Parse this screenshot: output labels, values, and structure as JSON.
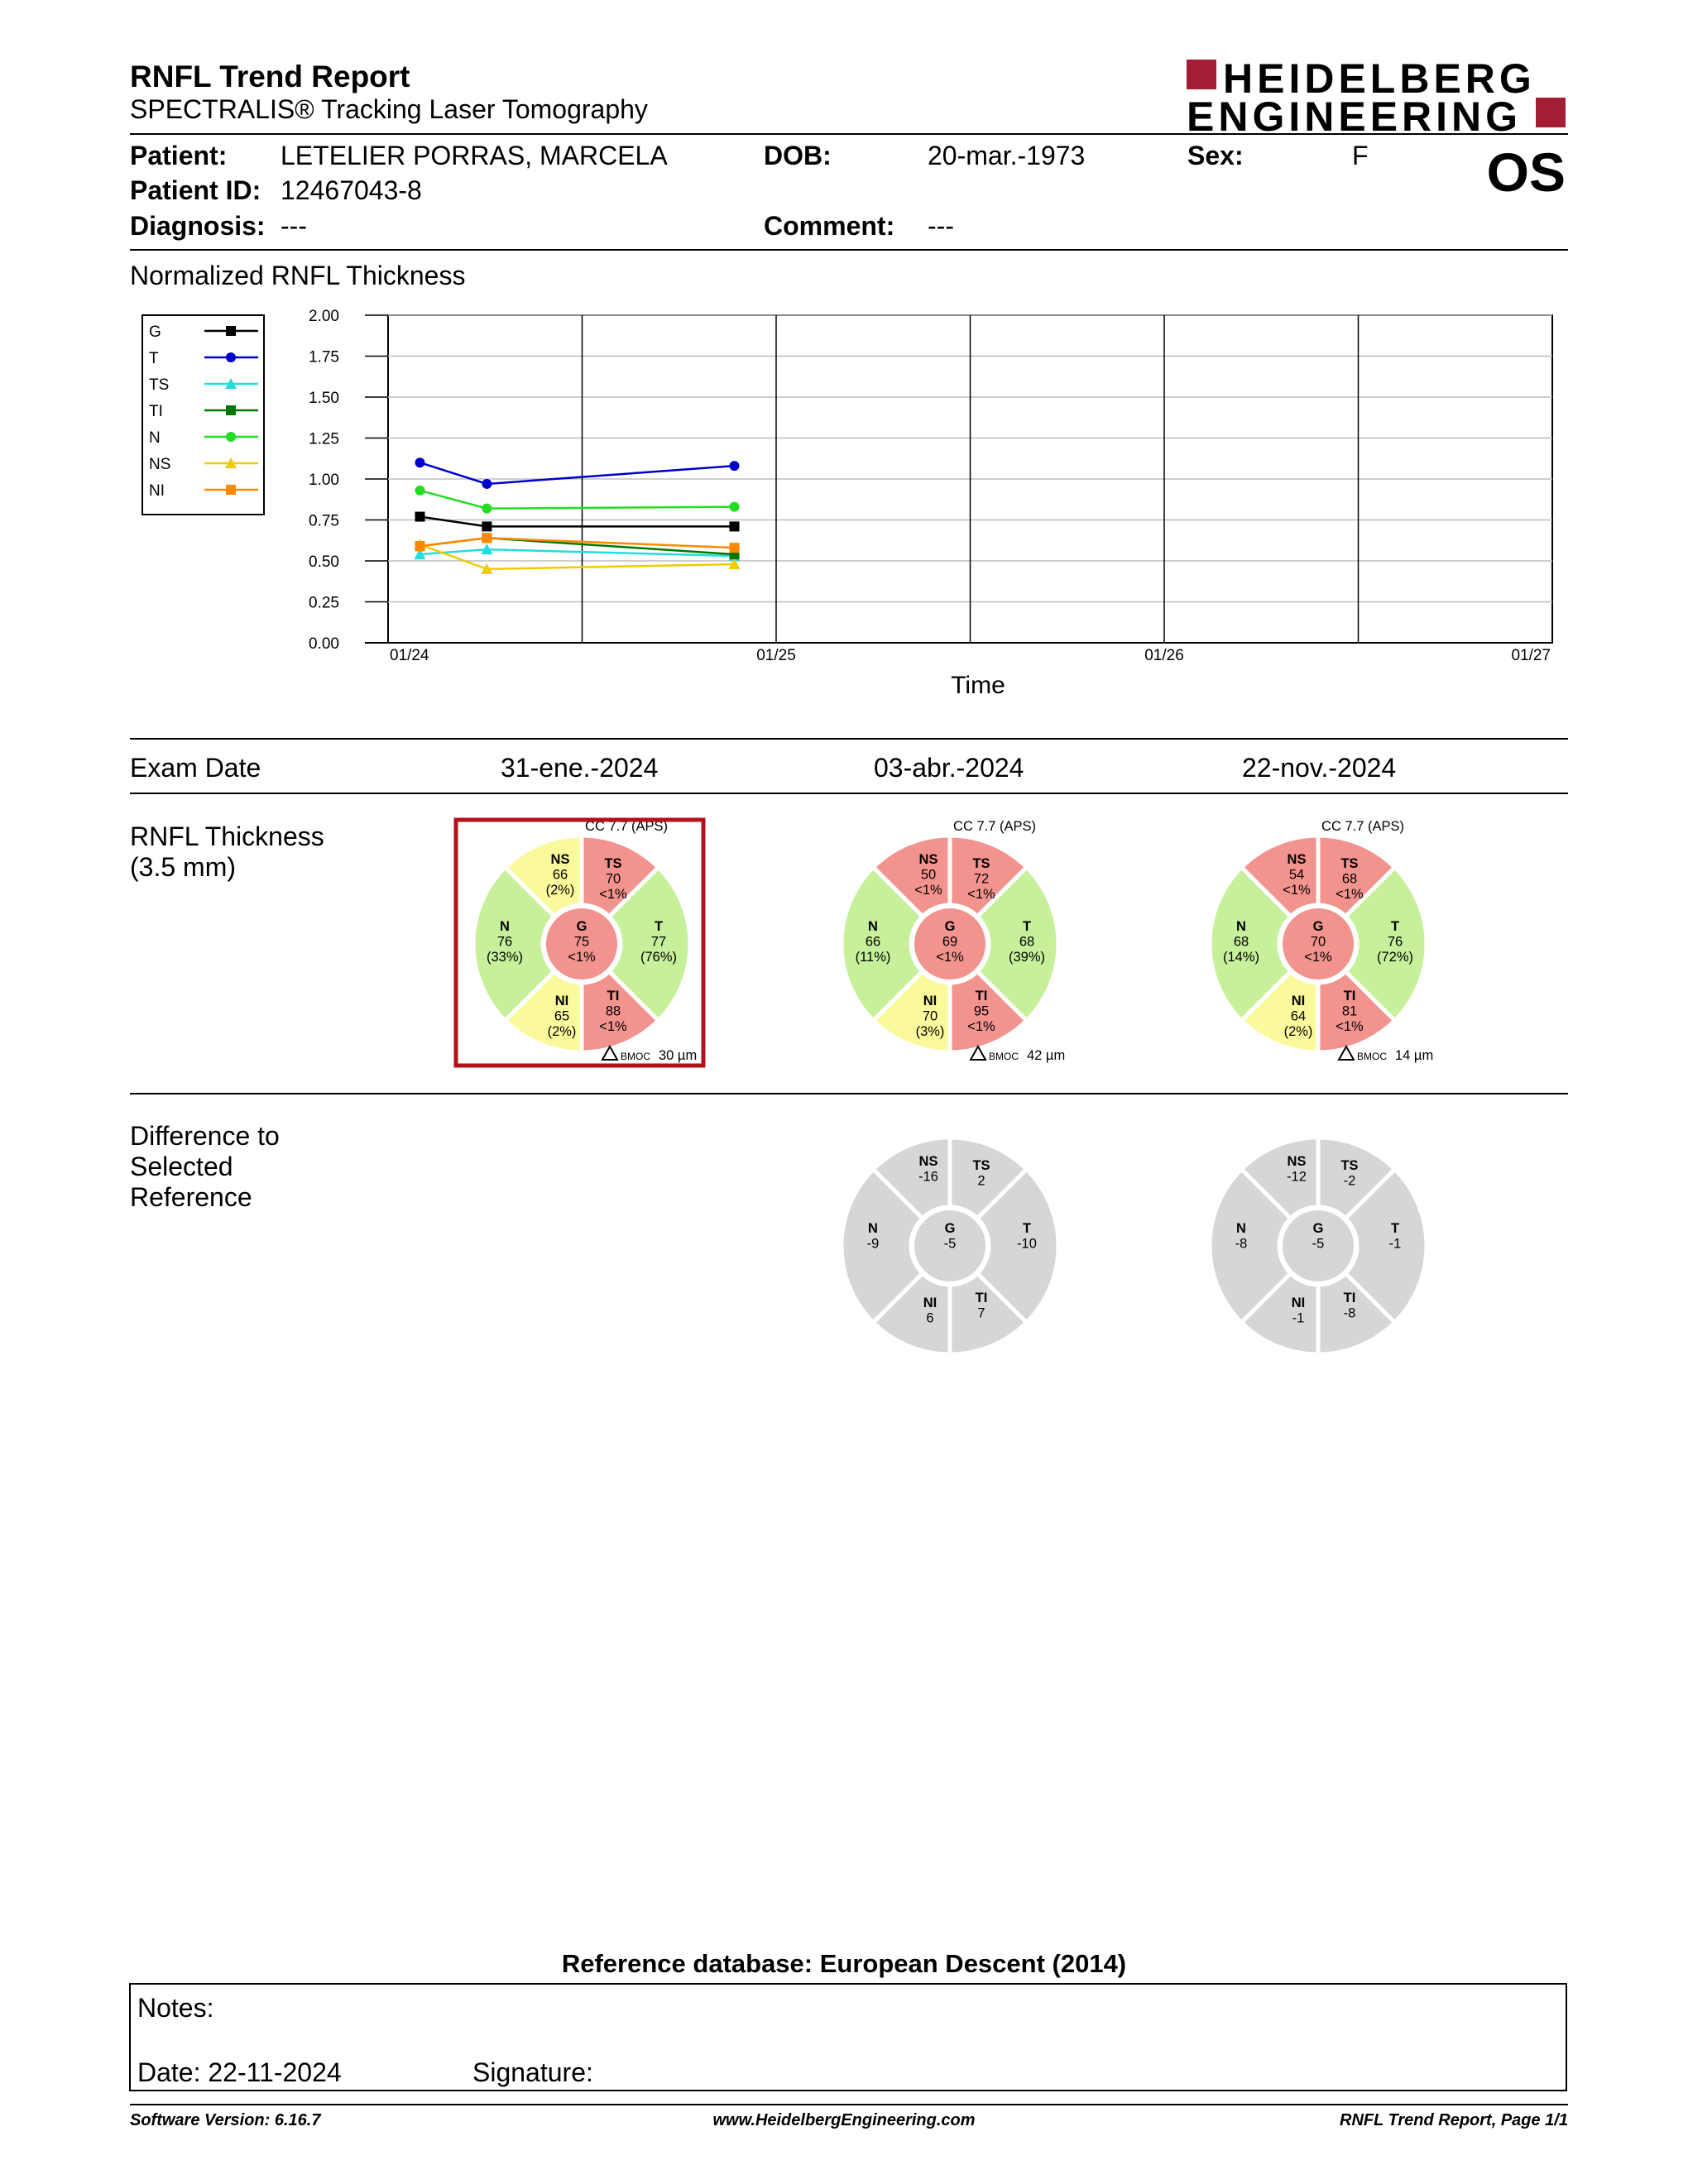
{
  "header": {
    "title": "RNFL Trend Report",
    "subtitle": "SPECTRALIS® Tracking Laser Tomography",
    "logo_line1": "HEIDELBERG",
    "logo_line2": "ENGINEERING",
    "brand_color": "#a31d35"
  },
  "patient": {
    "patient_label": "Patient:",
    "patient_value": "LETELIER PORRAS, MARCELA",
    "id_label": "Patient ID:",
    "id_value": "12467043-8",
    "diagnosis_label": "Diagnosis:",
    "diagnosis_value": "---",
    "dob_label": "DOB:",
    "dob_value": "20-mar.-1973",
    "comment_label": "Comment:",
    "comment_value": "---",
    "sex_label": "Sex:",
    "sex_value": "F",
    "eye": "OS"
  },
  "trend": {
    "section_title": "Normalized RNFL Thickness"
  },
  "chart_data": {
    "type": "line",
    "title": "",
    "xlabel": "Time",
    "ylabel": "",
    "x_tick_labels": [
      "01/24",
      "01/25",
      "01/26",
      "01/27"
    ],
    "y_tick_labels": [
      "2.00",
      "1.75",
      "1.50",
      "1.25",
      "1.00",
      "0.75",
      "0.50",
      "0.25",
      "0.00"
    ],
    "ylim": [
      0,
      2
    ],
    "xlim": [
      "2024-01-01",
      "2027-01-01"
    ],
    "grid": true,
    "legend": "left",
    "x": [
      "2024-01-31",
      "2024-04-03",
      "2024-11-22"
    ],
    "series": [
      {
        "name": "G",
        "color": "#000000",
        "marker": "square",
        "values": [
          0.77,
          0.71,
          0.71
        ]
      },
      {
        "name": "T",
        "color": "#0000cc",
        "marker": "circle",
        "values": [
          1.1,
          0.97,
          1.08
        ]
      },
      {
        "name": "TS",
        "color": "#22dddd",
        "marker": "triangle",
        "values": [
          0.54,
          0.57,
          0.53
        ]
      },
      {
        "name": "TI",
        "color": "#007700",
        "marker": "square",
        "values": [
          0.59,
          0.64,
          0.54
        ]
      },
      {
        "name": "N",
        "color": "#22dd22",
        "marker": "circle",
        "values": [
          0.93,
          0.82,
          0.83
        ]
      },
      {
        "name": "NS",
        "color": "#eecc00",
        "marker": "triangle",
        "values": [
          0.6,
          0.45,
          0.48
        ]
      },
      {
        "name": "NI",
        "color": "#ff8800",
        "marker": "square",
        "values": [
          0.59,
          0.64,
          0.58
        ]
      }
    ]
  },
  "exams": {
    "date_label": "Exam Date",
    "thickness_label_1": "RNFL Thickness",
    "thickness_label_2": "(3.5 mm)",
    "diff_label_1": "Difference to",
    "diff_label_2": "Selected",
    "diff_label_3": "Reference",
    "colors": {
      "green": "#c6f09a",
      "yellow": "#fafa9c",
      "red": "#f2938e",
      "grey": "#d6d6d6",
      "selected": "#b3121b"
    },
    "items": [
      {
        "date": "31-ene.-2024",
        "cc": "CC 7.7 (APS)",
        "bmoc_label": "BMOC",
        "bmoc_value": "30 µm",
        "sectors": {
          "NS": {
            "label": "NS",
            "value": "66",
            "pct": "(2%)",
            "status": "yellow"
          },
          "TS": {
            "label": "TS",
            "value": "70",
            "pct": "<1%",
            "status": "red"
          },
          "N": {
            "label": "N",
            "value": "76",
            "pct": "(33%)",
            "status": "green"
          },
          "G": {
            "label": "G",
            "value": "75",
            "pct": "<1%",
            "status": "red"
          },
          "T": {
            "label": "T",
            "value": "77",
            "pct": "(76%)",
            "status": "green"
          },
          "NI": {
            "label": "NI",
            "value": "65",
            "pct": "(2%)",
            "status": "yellow"
          },
          "TI": {
            "label": "TI",
            "value": "88",
            "pct": "<1%",
            "status": "red"
          }
        }
      },
      {
        "date": "03-abr.-2024",
        "cc": "CC 7.7 (APS)",
        "bmoc_label": "BMOC",
        "bmoc_value": "42 µm",
        "sectors": {
          "NS": {
            "label": "NS",
            "value": "50",
            "pct": "<1%",
            "status": "red"
          },
          "TS": {
            "label": "TS",
            "value": "72",
            "pct": "<1%",
            "status": "red"
          },
          "N": {
            "label": "N",
            "value": "66",
            "pct": "(11%)",
            "status": "green"
          },
          "G": {
            "label": "G",
            "value": "69",
            "pct": "<1%",
            "status": "red"
          },
          "T": {
            "label": "T",
            "value": "68",
            "pct": "(39%)",
            "status": "green"
          },
          "NI": {
            "label": "NI",
            "value": "70",
            "pct": "(3%)",
            "status": "yellow"
          },
          "TI": {
            "label": "TI",
            "value": "95",
            "pct": "<1%",
            "status": "red"
          }
        },
        "diff": {
          "NS": "-16",
          "TS": "2",
          "N": "-9",
          "G": "-5",
          "T": "-10",
          "NI": "6",
          "TI": "7"
        }
      },
      {
        "date": "22-nov.-2024",
        "cc": "CC 7.7 (APS)",
        "bmoc_label": "BMOC",
        "bmoc_value": "14 µm",
        "sectors": {
          "NS": {
            "label": "NS",
            "value": "54",
            "pct": "<1%",
            "status": "red"
          },
          "TS": {
            "label": "TS",
            "value": "68",
            "pct": "<1%",
            "status": "red"
          },
          "N": {
            "label": "N",
            "value": "68",
            "pct": "(14%)",
            "status": "green"
          },
          "G": {
            "label": "G",
            "value": "70",
            "pct": "<1%",
            "status": "red"
          },
          "T": {
            "label": "T",
            "value": "76",
            "pct": "(72%)",
            "status": "green"
          },
          "NI": {
            "label": "NI",
            "value": "64",
            "pct": "(2%)",
            "status": "yellow"
          },
          "TI": {
            "label": "TI",
            "value": "81",
            "pct": "<1%",
            "status": "red"
          }
        },
        "diff": {
          "NS": "-12",
          "TS": "-2",
          "N": "-8",
          "G": "-5",
          "T": "-1",
          "NI": "-1",
          "TI": "-8"
        }
      }
    ]
  },
  "reference_db": "Reference database: European Descent (2014)",
  "notes": {
    "notes_label": "Notes:",
    "date_label": "Date: 22-11-2024",
    "signature_label": "Signature:"
  },
  "footer": {
    "software": "Software Version: 6.16.7",
    "website": "www.HeidelbergEngineering.com",
    "page": "RNFL Trend Report, Page 1/1"
  }
}
